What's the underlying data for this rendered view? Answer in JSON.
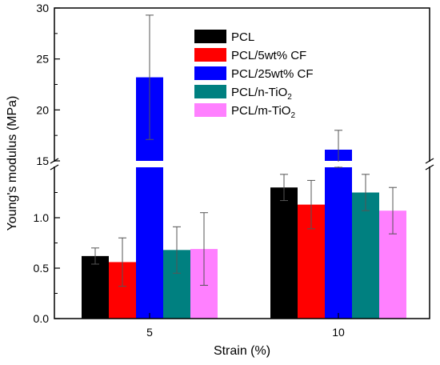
{
  "chart_data": {
    "type": "bar",
    "xlabel": "Strain (%)",
    "ylabel": "Young's modulus (MPa)",
    "categories": [
      "5",
      "10"
    ],
    "y_axis_break": {
      "lower_range": [
        0,
        1.5
      ],
      "upper_range": [
        15,
        30
      ],
      "lower_ticks": [
        "0.0",
        "0.5",
        "1.0"
      ],
      "upper_ticks": [
        "15",
        "20",
        "25",
        "30"
      ]
    },
    "legend_position": "top-right",
    "series": [
      {
        "name": "PCL",
        "name_base": "PCL",
        "name_sub": "",
        "color": "#000000",
        "values": [
          0.62,
          1.3
        ],
        "errors": [
          0.08,
          0.13
        ]
      },
      {
        "name": "PCL/5wt% CF",
        "name_base": "PCL/5wt% CF",
        "name_sub": "",
        "color": "#ff0000",
        "values": [
          0.56,
          1.13
        ],
        "errors": [
          0.24,
          0.24
        ]
      },
      {
        "name": "PCL/25wt% CF",
        "name_base": "PCL/25wt% CF",
        "name_sub": "",
        "color": "#0000ff",
        "values": [
          23.2,
          16.1
        ],
        "errors": [
          6.1,
          1.9
        ]
      },
      {
        "name": "PCL/n-TiO2",
        "name_base": "PCL/n-TiO",
        "name_sub": "2",
        "color": "#008080",
        "values": [
          0.68,
          1.25
        ],
        "errors": [
          0.23,
          0.18
        ]
      },
      {
        "name": "PCL/m-TiO2",
        "name_base": "PCL/m-TiO",
        "name_sub": "2",
        "color": "#ff80ff",
        "values": [
          0.69,
          1.07
        ],
        "errors": [
          0.36,
          0.23
        ]
      }
    ]
  }
}
